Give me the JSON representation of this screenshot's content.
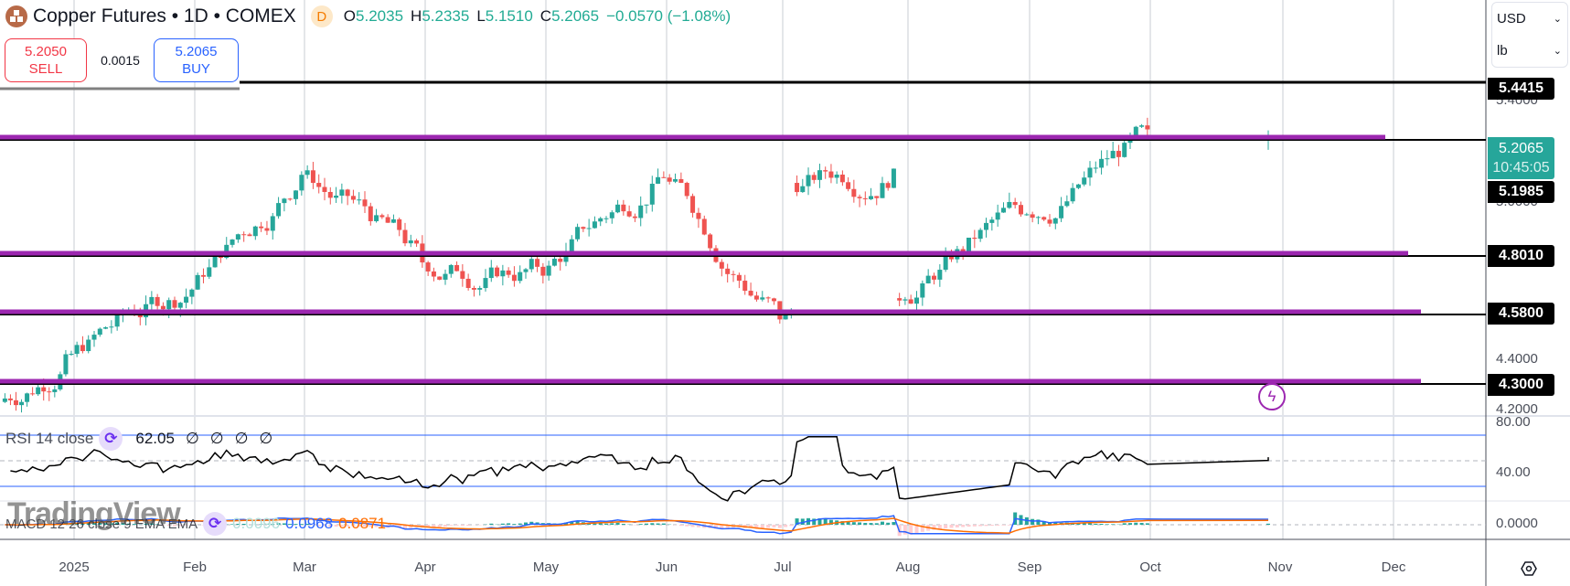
{
  "header": {
    "symbol_title": "Copper Futures • 1D • COMEX",
    "interval_badge": "D",
    "ohlc": [
      {
        "key": "O",
        "value": "5.2035"
      },
      {
        "key": "H",
        "value": "5.2335"
      },
      {
        "key": "L",
        "value": "5.1510"
      },
      {
        "key": "C",
        "value": "5.2065"
      },
      {
        "key": "",
        "value": "−0.0570 (−1.08%)"
      }
    ]
  },
  "trade": {
    "sell_price": "5.2050",
    "sell_label": "SELL",
    "spread": "0.0015",
    "buy_price": "5.2065",
    "buy_label": "BUY"
  },
  "units": {
    "currency": "USD",
    "unit": "lb"
  },
  "price_axis": {
    "labels": [
      "5.4000",
      "5.0000",
      "4.4000",
      "4.2000"
    ],
    "tags": [
      {
        "value": "5.4415",
        "type": "level"
      },
      {
        "value": "5.1985",
        "type": "level"
      },
      {
        "value": "4.8010",
        "type": "level"
      },
      {
        "value": "4.5800",
        "type": "level"
      },
      {
        "value": "4.3000",
        "type": "level"
      }
    ],
    "current_price": "5.2065",
    "countdown": "10:45:05"
  },
  "rsi": {
    "label": "RSI 14 close",
    "value": "62.05",
    "nan_values": [
      "∅",
      "∅",
      "∅",
      "∅"
    ],
    "axis_labels": [
      "80.00",
      "40.00"
    ]
  },
  "macd": {
    "label": "MACD 12 26 close 9 EMA EMA",
    "histogram": "0.0096",
    "macd": "0.0968",
    "signal": "0.0871",
    "axis_labels": [
      "0.0000"
    ]
  },
  "watermark": "TradingView",
  "time_axis": {
    "labels": [
      "2025",
      "Feb",
      "Mar",
      "Apr",
      "May",
      "Jun",
      "Jul",
      "Aug",
      "Sep",
      "Oct",
      "Nov",
      "Dec"
    ]
  },
  "colors": {
    "up": "#26a69a",
    "down": "#ef5350",
    "level_line": "#9c27b0",
    "rsi_band": "#2962ff",
    "macd_line": "#2962ff",
    "signal_line": "#ff6d00"
  },
  "chart_data": {
    "type": "candlestick",
    "title": "Copper Futures • 1D • COMEX",
    "xlabel": "",
    "ylabel": "USD / lb",
    "ylim": [
      4.18,
      5.78
    ],
    "grid": true,
    "x_ticks": [
      "2025",
      "Feb",
      "Mar",
      "Apr",
      "May",
      "Jun",
      "Jul",
      "Aug",
      "Sep",
      "Oct",
      "Nov",
      "Dec"
    ],
    "last": {
      "open": 5.2035,
      "high": 5.2335,
      "low": 5.151,
      "close": 5.2065,
      "change": -0.057,
      "change_pct": -1.08
    },
    "horizontal_levels": [
      5.4415,
      5.1985,
      4.801,
      4.58,
      4.3
    ],
    "approx_monthly_close": [
      {
        "month": "Dec 2024",
        "close": 4.08
      },
      {
        "month": "Jan 2025",
        "close": 4.28
      },
      {
        "month": "Feb 2025",
        "close": 4.56
      },
      {
        "month": "Mar 2025",
        "close": 5.05
      },
      {
        "month": "Apr 2025",
        "close": 4.68
      },
      {
        "month": "May 2025",
        "close": 4.65
      },
      {
        "month": "Jun 2025",
        "close": 5.05
      },
      {
        "month": "Jul 2025",
        "close": 4.45
      },
      {
        "month": "Aug 2025",
        "close": 4.55
      },
      {
        "month": "Sep 2025",
        "close": 4.9
      },
      {
        "month": "Oct 2025",
        "close": 5.2065
      }
    ],
    "indicators": [
      {
        "name": "RSI 14 close",
        "last": 62.05,
        "bands": [
          70,
          30
        ],
        "ylim": [
          20,
          85
        ]
      },
      {
        "name": "MACD 12 26 close 9",
        "histogram": 0.0096,
        "macd": 0.0968,
        "signal": 0.0871
      }
    ]
  }
}
